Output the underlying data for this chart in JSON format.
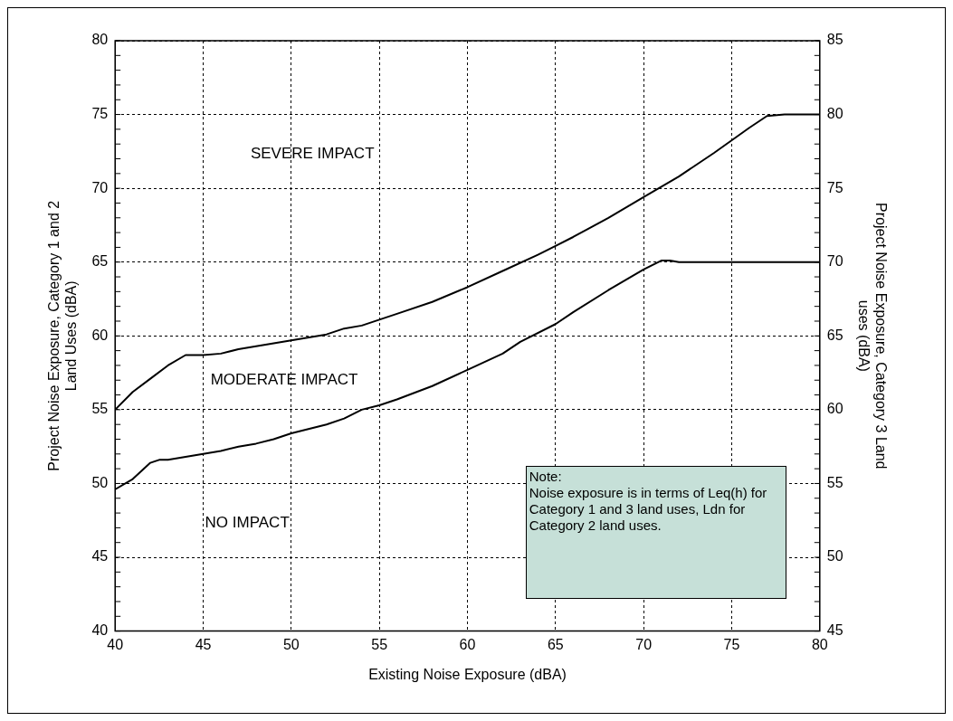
{
  "chart_data": {
    "type": "line",
    "xlabel": "Existing Noise Exposure (dBA)",
    "ylabel": "Project Noise Exposure, Category 1 and 2 Land Uses (dBA)",
    "y2label": "Project Noise Exposure, Category 3 Land uses (dBA)",
    "series": [
      {
        "color": "#000000",
        "x": [
          40,
          41,
          42,
          43,
          44,
          45,
          46,
          47,
          48,
          49,
          50,
          52,
          53,
          54,
          55,
          56,
          58,
          60,
          62,
          64,
          65,
          66,
          68,
          70,
          72,
          74,
          76,
          77,
          78,
          80
        ],
        "values": [
          55,
          56.2,
          57.1,
          58,
          58.7,
          58.7,
          58.8,
          59.1,
          59.3,
          59.5,
          59.7,
          60.1,
          60.5,
          60.7,
          61.1,
          61.5,
          62.3,
          63.3,
          64.4,
          65.5,
          66.1,
          66.7,
          68,
          69.4,
          70.8,
          72.4,
          74.1,
          74.9,
          75,
          75
        ]
      },
      {
        "color": "#000000",
        "x": [
          40,
          41,
          42,
          42.5,
          43,
          44,
          45,
          46,
          47,
          48,
          49,
          50,
          52,
          53,
          54,
          55,
          56,
          58,
          60,
          62,
          63,
          65,
          66,
          68,
          70,
          71,
          71.5,
          72,
          80
        ],
        "values": [
          49.6,
          50.3,
          51.4,
          51.6,
          51.6,
          51.8,
          52,
          52.2,
          52.5,
          52.7,
          53,
          53.4,
          54,
          54.4,
          55,
          55.3,
          55.7,
          56.6,
          57.7,
          58.8,
          59.6,
          60.8,
          61.6,
          63.1,
          64.5,
          65.1,
          65.1,
          65,
          65
        ]
      }
    ],
    "xlim": [
      40,
      80
    ],
    "xticks": [
      40,
      45,
      50,
      55,
      60,
      65,
      70,
      75,
      80
    ],
    "ylim": [
      40,
      80
    ],
    "yticks": [
      40,
      45,
      50,
      55,
      60,
      65,
      70,
      75,
      80
    ],
    "y2lim": [
      45,
      85
    ],
    "y2ticks": [
      45,
      50,
      55,
      60,
      65,
      70,
      75,
      80,
      85
    ],
    "grid": true,
    "legend": false,
    "marker": "none",
    "line_style": "solid",
    "annotations": [
      "SEVERE IMPACT",
      "MODERATE IMPACT",
      "NO IMPACT",
      "Note:\nNoise exposure is in terms of Leq(h) for Category 1 and 3 land uses, Ldn for Category 2 land uses."
    ]
  }
}
